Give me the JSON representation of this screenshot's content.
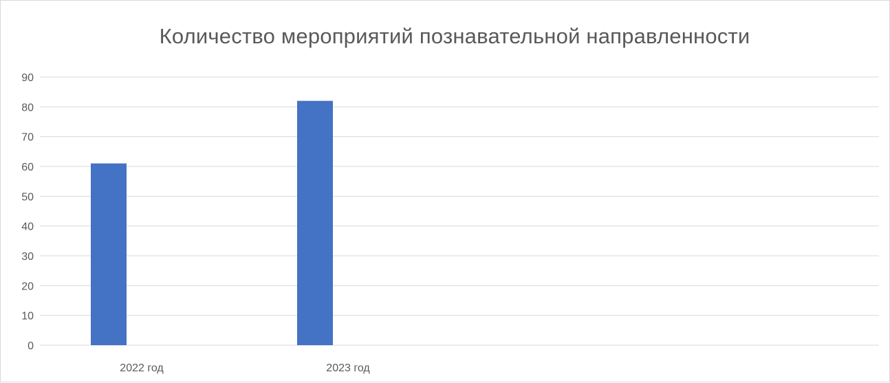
{
  "chart_data": {
    "type": "bar",
    "title": "Количество мероприятий познавательной направленности",
    "categories": [
      "2022 год",
      "2023 год",
      "",
      ""
    ],
    "series": [
      {
        "values": [
          61,
          82,
          null,
          null
        ]
      }
    ],
    "ylim": [
      0,
      90
    ],
    "yticks": [
      0,
      10,
      20,
      30,
      40,
      50,
      60,
      70,
      80,
      90
    ],
    "xlabel": "",
    "ylabel": "",
    "grid": true,
    "legend": "none",
    "colors": {
      "bar": "#4472c4",
      "grid": "#d9d9d9",
      "text": "#595959"
    }
  }
}
